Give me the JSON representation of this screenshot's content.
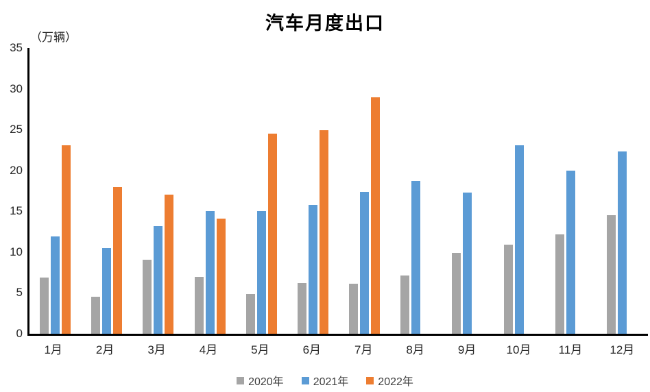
{
  "title": "汽车月度出口",
  "unit_label": "（万辆）",
  "chart_data": {
    "type": "bar",
    "title": "汽车月度出口",
    "ylabel": "（万辆）",
    "xlabel": "",
    "categories": [
      "1月",
      "2月",
      "3月",
      "4月",
      "5月",
      "6月",
      "7月",
      "8月",
      "9月",
      "10月",
      "11月",
      "12月"
    ],
    "series": [
      {
        "name": "2020年",
        "color": "#A5A5A5",
        "values": [
          6.9,
          4.5,
          9.1,
          7.0,
          4.9,
          6.2,
          6.1,
          7.1,
          9.9,
          10.9,
          12.2,
          14.5
        ]
      },
      {
        "name": "2021年",
        "color": "#5B9BD5",
        "values": [
          11.9,
          10.5,
          13.2,
          15.0,
          15.0,
          15.8,
          17.4,
          18.7,
          17.3,
          23.1,
          20.0,
          22.3
        ]
      },
      {
        "name": "2022年",
        "color": "#ED7D31",
        "values": [
          23.1,
          18.0,
          17.0,
          14.1,
          24.5,
          24.9,
          29.0,
          null,
          null,
          null,
          null,
          null
        ]
      }
    ],
    "ylim": [
      0,
      35
    ],
    "yticks": [
      0,
      5,
      10,
      15,
      20,
      25,
      30,
      35
    ],
    "grid": false,
    "legend_position": "bottom",
    "axis_color": "#000000",
    "background": "#ffffff"
  },
  "legend": {
    "items": [
      {
        "label": "2020年"
      },
      {
        "label": "2021年"
      },
      {
        "label": "2022年"
      }
    ]
  }
}
